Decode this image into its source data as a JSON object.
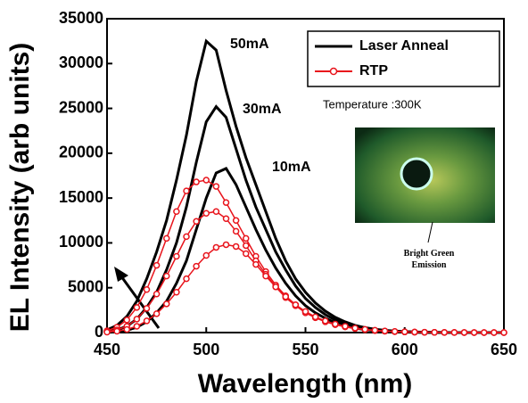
{
  "chart_data": {
    "type": "line",
    "x_label": "Wavelength (nm)",
    "y_label": "EL Intensity (arb units)",
    "x": [
      450,
      455,
      460,
      465,
      470,
      475,
      480,
      485,
      490,
      495,
      500,
      505,
      510,
      515,
      520,
      525,
      530,
      535,
      540,
      545,
      550,
      555,
      560,
      565,
      570,
      575,
      580,
      585,
      590,
      595,
      600,
      605,
      610,
      615,
      620,
      625,
      630,
      635,
      640,
      645,
      650
    ],
    "series": [
      {
        "name": "Laser Anneal",
        "color": "#000000",
        "marker": false,
        "lines": [
          {
            "label": "50mA",
            "values": [
              300,
              800,
              1800,
              3500,
              6000,
              9000,
              12500,
              17000,
              22000,
              28000,
              32500,
              31500,
              27000,
              23000,
              19500,
              16500,
              13500,
              10500,
              8000,
              6000,
              4500,
              3300,
              2400,
              1700,
              1200,
              800,
              550,
              380,
              250,
              170,
              110,
              70,
              40,
              20,
              10,
              0,
              0,
              0,
              0,
              0,
              0
            ]
          },
          {
            "label": "30mA",
            "values": [
              100,
              300,
              700,
              1500,
              2800,
              4500,
              7000,
              10000,
              14000,
              19000,
              23500,
              25200,
              24000,
              20500,
              17000,
              14000,
              11500,
              9000,
              7000,
              5200,
              3800,
              2800,
              2000,
              1400,
              950,
              650,
              450,
              300,
              200,
              130,
              80,
              50,
              30,
              15,
              5,
              0,
              0,
              0,
              0,
              0,
              0
            ]
          },
          {
            "label": "10mA",
            "values": [
              0,
              100,
              250,
              600,
              1200,
              2200,
              3500,
              5500,
              8000,
              11500,
              15000,
              17800,
              18300,
              16500,
              14000,
              11500,
              9200,
              7200,
              5500,
              4100,
              3000,
              2200,
              1600,
              1100,
              750,
              500,
              330,
              220,
              140,
              90,
              55,
              30,
              15,
              5,
              0,
              0,
              0,
              0,
              0,
              0,
              0
            ]
          }
        ]
      },
      {
        "name": "RTP",
        "color": "#e8141c",
        "marker": true,
        "lines": [
          {
            "values": [
              200,
              600,
              1400,
              2800,
              4800,
              7500,
              10500,
              13500,
              15800,
              16800,
              17000,
              16300,
              14500,
              12500,
              10500,
              8500,
              6800,
              5300,
              4100,
              3100,
              2300,
              1700,
              1250,
              900,
              650,
              450,
              320,
              220,
              150,
              100,
              70,
              45,
              30,
              20,
              12,
              8,
              5,
              3,
              2,
              1,
              0
            ]
          },
          {
            "values": [
              100,
              300,
              700,
              1500,
              2700,
              4300,
              6300,
              8500,
              10700,
              12400,
              13300,
              13500,
              12700,
              11300,
              9700,
              8000,
              6500,
              5100,
              3900,
              3000,
              2200,
              1650,
              1200,
              880,
              640,
              460,
              330,
              230,
              160,
              110,
              75,
              50,
              33,
              22,
              14,
              9,
              6,
              4,
              2,
              1,
              0
            ]
          },
          {
            "values": [
              50,
              150,
              350,
              700,
              1300,
              2100,
              3200,
              4500,
              6000,
              7400,
              8600,
              9500,
              9800,
              9600,
              8800,
              7600,
              6300,
              5100,
              4000,
              3100,
              2350,
              1750,
              1300,
              950,
              700,
              500,
              360,
              260,
              180,
              125,
              85,
              58,
              40,
              27,
              18,
              12,
              8,
              5,
              3,
              2,
              1
            ]
          }
        ]
      }
    ],
    "label_positions": {
      "50mA": [
        258,
        50
      ],
      "30mA": [
        272,
        123
      ],
      "10mA": [
        305,
        188
      ]
    },
    "annotations": {
      "temperature": "Temperature :300K",
      "inset_caption": "Bright Green Emission"
    },
    "xlim": [
      450,
      650
    ],
    "xticks": [
      450,
      500,
      550,
      600,
      650
    ],
    "ylim": [
      0,
      35000
    ],
    "yticks": [
      0,
      5000,
      10000,
      15000,
      20000,
      25000,
      30000,
      35000
    ],
    "legend": "upper right",
    "grid": false
  }
}
